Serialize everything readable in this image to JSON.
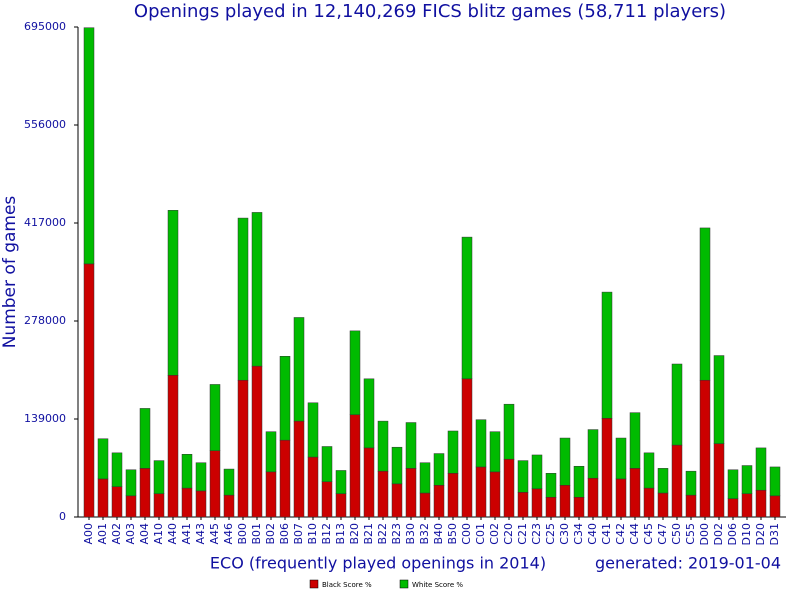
{
  "chart_data": {
    "type": "stacked-bar",
    "title": "Openings played in 12,140,269 FICS blitz games (58,711 players)",
    "y_label": "Number of games",
    "x_label": "ECO (frequently played openings in 2014)",
    "note": "generated: 2019-01-04",
    "categories": [
      "A00",
      "A01",
      "A02",
      "A03",
      "A04",
      "A10",
      "A40",
      "A41",
      "A43",
      "A45",
      "A46",
      "B00",
      "B01",
      "B02",
      "B06",
      "B07",
      "B10",
      "B12",
      "B13",
      "B20",
      "B21",
      "B22",
      "B23",
      "B30",
      "B32",
      "B40",
      "B50",
      "C00",
      "C01",
      "C02",
      "C20",
      "C21",
      "C23",
      "C25",
      "C30",
      "C34",
      "C40",
      "C41",
      "C42",
      "C44",
      "C45",
      "C47",
      "C50",
      "C55",
      "D00",
      "D02",
      "D06",
      "D10",
      "D20",
      "D31"
    ],
    "series": [
      {
        "name": "Black Score %",
        "color": "#cc0000",
        "values": [
          359000,
          54000,
          43000,
          30000,
          69000,
          33000,
          201000,
          41000,
          37000,
          94000,
          31000,
          194000,
          214000,
          64000,
          109000,
          136000,
          85000,
          50000,
          33000,
          145000,
          98000,
          65000,
          47000,
          69000,
          34000,
          45000,
          62000,
          196000,
          71000,
          64000,
          82000,
          35000,
          40000,
          28000,
          45000,
          28000,
          55000,
          140000,
          54000,
          69000,
          41000,
          34000,
          102000,
          31000,
          194000,
          104000,
          26000,
          33000,
          38000,
          30000
        ]
      },
      {
        "name": "White Score %",
        "color": "#00bb00",
        "values": [
          335000,
          57000,
          48000,
          37000,
          85000,
          47000,
          234000,
          48000,
          40000,
          94000,
          37000,
          230000,
          218000,
          57000,
          119000,
          147000,
          77000,
          50000,
          33000,
          119000,
          98000,
          71000,
          52000,
          65000,
          43000,
          45000,
          60000,
          201000,
          67000,
          57000,
          78000,
          45000,
          48000,
          34000,
          67000,
          44000,
          69000,
          179000,
          58000,
          79000,
          50000,
          35000,
          115000,
          34000,
          216000,
          125000,
          41000,
          40000,
          60000,
          41000
        ]
      }
    ],
    "ylim": [
      0,
      695000
    ],
    "yticks": [
      0,
      139000,
      278000,
      417000,
      556000,
      695000
    ],
    "legend": "bottom"
  }
}
